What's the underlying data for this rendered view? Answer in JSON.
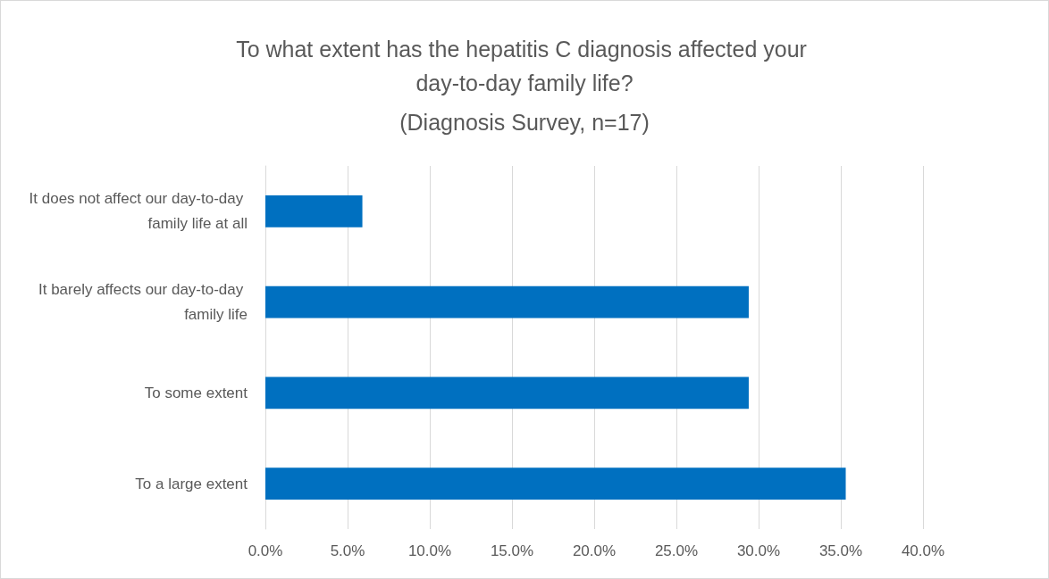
{
  "chart_data": {
    "type": "bar",
    "orientation": "horizontal",
    "title": "To what extent has the hepatitis C diagnosis affected your day-to-day family life?",
    "subtitle": "(Diagnosis Survey, n=17)",
    "categories": [
      "It does not affect our day-to-day family life at all",
      "It barely affects our day-to-day family life",
      "To some extent",
      "To a large extent"
    ],
    "values": [
      5.9,
      29.4,
      29.4,
      35.3
    ],
    "color": "#0070c0",
    "xlim": [
      0,
      40
    ],
    "xticks": [
      {
        "value": 0,
        "label": "0.0%"
      },
      {
        "value": 5,
        "label": "5.0%"
      },
      {
        "value": 10,
        "label": "10.0%"
      },
      {
        "value": 15,
        "label": "15.0%"
      },
      {
        "value": 20,
        "label": "20.0%"
      },
      {
        "value": 25,
        "label": "25.0%"
      },
      {
        "value": 30,
        "label": "30.0%"
      },
      {
        "value": 35,
        "label": "35.0%"
      },
      {
        "value": 40,
        "label": "40.0%"
      }
    ],
    "grid": "x"
  }
}
